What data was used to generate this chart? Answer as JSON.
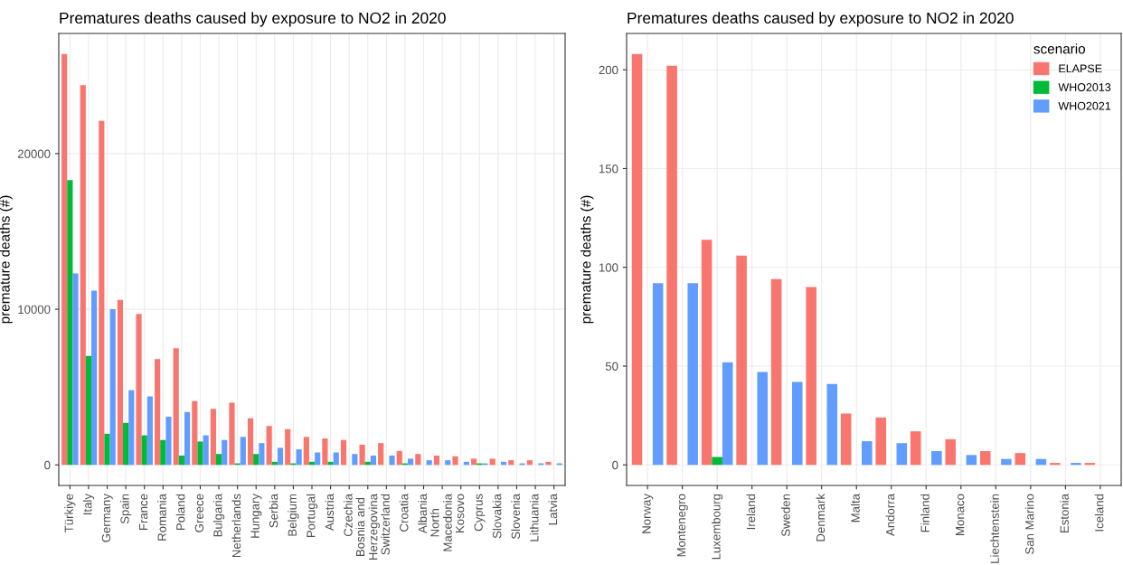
{
  "chart_data": [
    {
      "type": "bar",
      "title": "Prematures deaths caused by exposure to NO2 in 2020",
      "ylabel": "premature deaths (#)",
      "categories": [
        "Türkiye",
        "Italy",
        "Germany",
        "Spain",
        "France",
        "Romania",
        "Poland",
        "Greece",
        "Bulgaria",
        "Netherlands",
        "Hungary",
        "Serbia",
        "Belgium",
        "Portugal",
        "Austria",
        "Czechia",
        "Bosnia and\nHerzegovina",
        "Switzerland",
        "Croatia",
        "Albania",
        "North\nMacedonia",
        "Kosovo",
        "Cyprus",
        "Slovakia",
        "Slovenia",
        "Lithuania",
        "Latvia"
      ],
      "series": [
        {
          "color": "#f8766d",
          "values": [
            26400,
            24400,
            22100,
            10600,
            9700,
            6800,
            7500,
            4100,
            3600,
            4000,
            3000,
            2500,
            2300,
            1800,
            1700,
            1600,
            1300,
            1400,
            900,
            700,
            600,
            550,
            400,
            400,
            300,
            300,
            200
          ]
        },
        {
          "color": "#00ba38",
          "values": [
            18300,
            7000,
            2000,
            2700,
            1900,
            1600,
            600,
            1500,
            700,
            100,
            700,
            200,
            100,
            200,
            200,
            0,
            200,
            0,
            100,
            0,
            0,
            0,
            100,
            null,
            null,
            null,
            null
          ]
        },
        {
          "color": "#619cff",
          "values": [
            12300,
            11200,
            10000,
            4800,
            4400,
            3100,
            3400,
            1900,
            1600,
            1800,
            1400,
            1100,
            1000,
            800,
            800,
            700,
            600,
            600,
            400,
            300,
            300,
            200,
            100,
            200,
            100,
            100,
            100
          ]
        }
      ],
      "ylim": [
        -1320,
        27720
      ],
      "yticks": [
        0,
        10000,
        20000
      ],
      "grid": true
    },
    {
      "type": "bar",
      "title": "Prematures deaths caused by exposure to NO2 in 2020",
      "ylabel": "premature deaths (#)",
      "legend_title": "scenario",
      "categories": [
        "Norway",
        "Montenegro",
        "Luxembourg",
        "Ireland",
        "Sweden",
        "Denmark",
        "Malta",
        "Andorra",
        "Finland",
        "Monaco",
        "Liechtenstein",
        "San Marino",
        "Estonia",
        "Iceland"
      ],
      "series": [
        {
          "name": "ELAPSE",
          "color": "#f8766d",
          "values": [
            208,
            202,
            114,
            106,
            94,
            90,
            26,
            24,
            17,
            13,
            7,
            6,
            1,
            1
          ]
        },
        {
          "name": "WHO2013",
          "color": "#00ba38",
          "values": [
            null,
            null,
            4,
            null,
            null,
            null,
            null,
            null,
            null,
            null,
            null,
            null,
            null,
            null
          ]
        },
        {
          "name": "WHO2021",
          "color": "#619cff",
          "values": [
            92,
            92,
            52,
            47,
            42,
            41,
            12,
            11,
            7,
            5,
            3,
            3,
            1,
            null
          ]
        }
      ],
      "ylim": [
        -10.4,
        218.4
      ],
      "yticks": [
        0,
        50,
        100,
        150,
        200
      ],
      "grid": true,
      "legend": "top right"
    }
  ]
}
